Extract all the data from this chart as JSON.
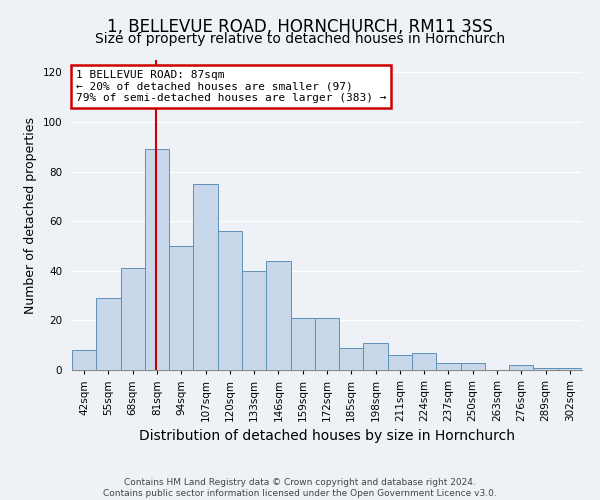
{
  "title": "1, BELLEVUE ROAD, HORNCHURCH, RM11 3SS",
  "subtitle": "Size of property relative to detached houses in Hornchurch",
  "xlabel": "Distribution of detached houses by size in Hornchurch",
  "ylabel": "Number of detached properties",
  "footer_line1": "Contains HM Land Registry data © Crown copyright and database right 2024.",
  "footer_line2": "Contains public sector information licensed under the Open Government Licence v3.0.",
  "bin_labels": [
    "42sqm",
    "55sqm",
    "68sqm",
    "81sqm",
    "94sqm",
    "107sqm",
    "120sqm",
    "133sqm",
    "146sqm",
    "159sqm",
    "172sqm",
    "185sqm",
    "198sqm",
    "211sqm",
    "224sqm",
    "237sqm",
    "250sqm",
    "263sqm",
    "276sqm",
    "289sqm",
    "302sqm"
  ],
  "bin_edges": [
    42,
    55,
    68,
    81,
    94,
    107,
    120,
    133,
    146,
    159,
    172,
    185,
    198,
    211,
    224,
    237,
    250,
    263,
    276,
    289,
    302
  ],
  "bar_heights": [
    8,
    29,
    41,
    89,
    50,
    75,
    56,
    40,
    44,
    21,
    21,
    9,
    11,
    6,
    7,
    3,
    3,
    0,
    2,
    1,
    1
  ],
  "bar_color": "#c8d8ea",
  "bar_edge_color": "#6090b8",
  "bar_edge_width": 0.7,
  "red_line_x": 87,
  "red_line_color": "#cc0000",
  "annotation_title": "1 BELLEVUE ROAD: 87sqm",
  "annotation_line1": "← 20% of detached houses are smaller (97)",
  "annotation_line2": "79% of semi-detached houses are larger (383) →",
  "annotation_box_color": "#ffffff",
  "annotation_box_edge": "#cc0000",
  "ylim": [
    0,
    125
  ],
  "yticks": [
    0,
    20,
    40,
    60,
    80,
    100,
    120
  ],
  "background_color": "#eef2f6",
  "plot_background": "#eef2f6",
  "grid_color": "#ffffff",
  "title_fontsize": 12,
  "subtitle_fontsize": 10,
  "xlabel_fontsize": 10,
  "ylabel_fontsize": 9,
  "tick_fontsize": 7.5,
  "annotation_fontsize": 8,
  "footer_fontsize": 6.5
}
